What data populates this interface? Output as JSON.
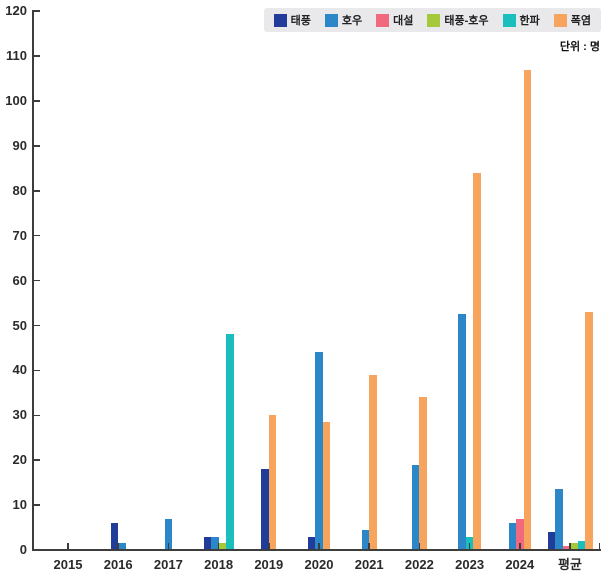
{
  "unit_label": "단위 : 명",
  "legend": {
    "background": "#e9e9ec",
    "position": "top-right"
  },
  "chart_data": {
    "type": "bar",
    "title": "",
    "xlabel": "",
    "ylabel": "",
    "unit": "명",
    "categories": [
      "2015",
      "2016",
      "2017",
      "2018",
      "2019",
      "2020",
      "2021",
      "2022",
      "2023",
      "2024",
      "평균"
    ],
    "series": [
      {
        "name": "태풍",
        "color": "#223d99",
        "values": [
          0,
          6,
          0,
          3,
          18,
          3,
          0,
          0,
          0,
          0,
          4
        ]
      },
      {
        "name": "호우",
        "color": "#2c87c9",
        "values": [
          0,
          1.5,
          7,
          3,
          0,
          44,
          4.5,
          19,
          52.5,
          6,
          13.5
        ]
      },
      {
        "name": "대설",
        "color": "#f0697f",
        "values": [
          0,
          0,
          0,
          0,
          0,
          0,
          0,
          0,
          0,
          7,
          1
        ]
      },
      {
        "name": "태풍-호우",
        "color": "#a6c93c",
        "values": [
          0,
          0,
          0,
          1.5,
          0,
          0,
          0,
          0,
          0,
          0,
          1.5
        ]
      },
      {
        "name": "한파",
        "color": "#1abfbd",
        "values": [
          0,
          0,
          0,
          48,
          0,
          0,
          0,
          0,
          3,
          0,
          2
        ]
      },
      {
        "name": "폭염",
        "color": "#f7a55d",
        "values": [
          0,
          0,
          0,
          0,
          30,
          28.5,
          39,
          34,
          84,
          107,
          53
        ]
      }
    ],
    "ylim": [
      0,
      120
    ],
    "ytick_interval": 10,
    "grid": false,
    "legend_position": "top-right"
  }
}
